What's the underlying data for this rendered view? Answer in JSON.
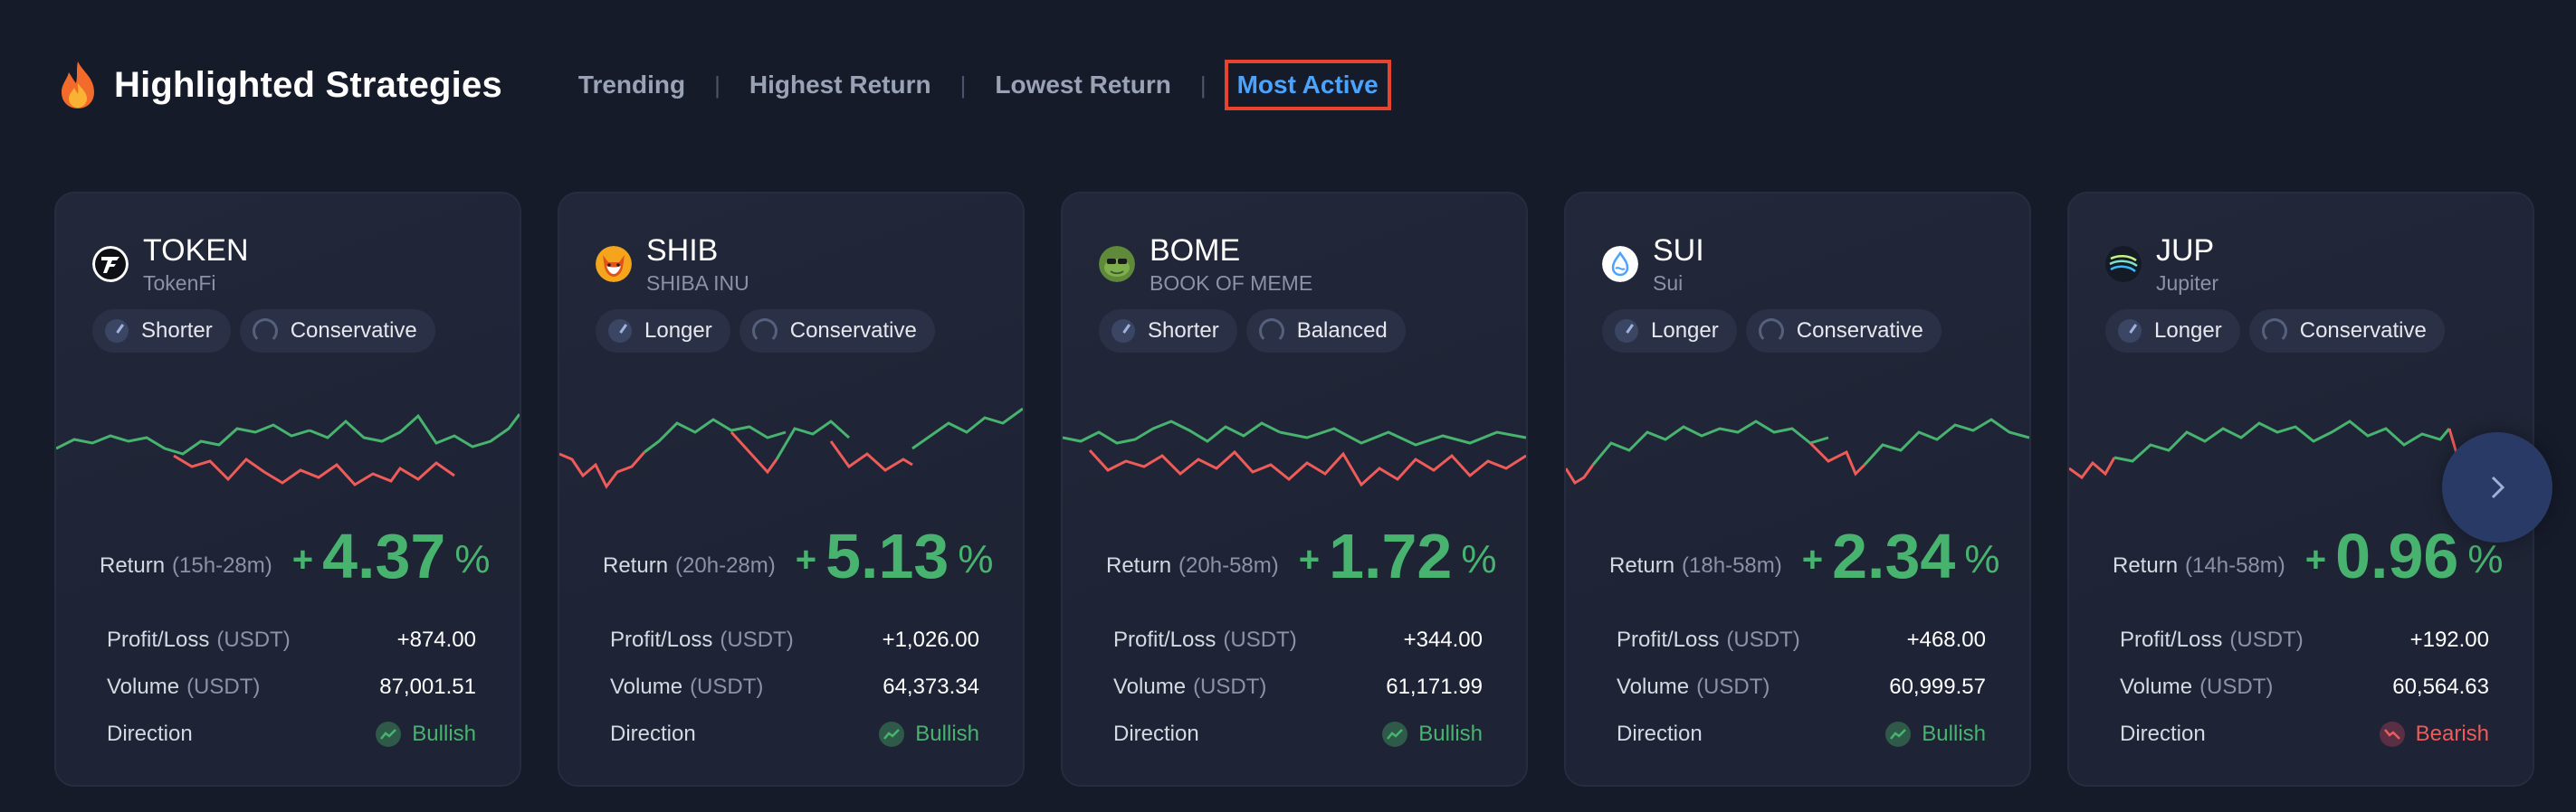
{
  "header": {
    "title": "Highlighted Strategies",
    "icon": "fire-icon",
    "tabs": [
      {
        "label": "Trending",
        "active": false
      },
      {
        "label": "Highest Return",
        "active": false
      },
      {
        "label": "Lowest Return",
        "active": false
      },
      {
        "label": "Most Active",
        "active": true
      }
    ]
  },
  "labels": {
    "return": "Return",
    "profit_loss": "Profit/Loss",
    "volume": "Volume",
    "unit": "(USDT)",
    "direction": "Direction",
    "percent": "%"
  },
  "colors": {
    "positive": "#47b36f",
    "negative": "#ee5b58",
    "active_tab": "#4aa3ff",
    "highlight_border": "#e8432d"
  },
  "cards": [
    {
      "symbol": "TOKEN",
      "name": "TokenFi",
      "duration": "Shorter",
      "risk": "Conservative",
      "return_time": "(15h-28m)",
      "return_sign": "+",
      "return_value": "4.37",
      "profit_loss": "+874.00",
      "volume": "87,001.51",
      "direction": "Bullish"
    },
    {
      "symbol": "SHIB",
      "name": "SHIBA INU",
      "duration": "Longer",
      "risk": "Conservative",
      "return_time": "(20h-28m)",
      "return_sign": "+",
      "return_value": "5.13",
      "profit_loss": "+1,026.00",
      "volume": "64,373.34",
      "direction": "Bullish"
    },
    {
      "symbol": "BOME",
      "name": "BOOK OF MEME",
      "duration": "Shorter",
      "risk": "Balanced",
      "return_time": "(20h-58m)",
      "return_sign": "+",
      "return_value": "1.72",
      "profit_loss": "+344.00",
      "volume": "61,171.99",
      "direction": "Bullish"
    },
    {
      "symbol": "SUI",
      "name": "Sui",
      "duration": "Longer",
      "risk": "Conservative",
      "return_time": "(18h-58m)",
      "return_sign": "+",
      "return_value": "2.34",
      "profit_loss": "+468.00",
      "volume": "60,999.57",
      "direction": "Bullish"
    },
    {
      "symbol": "JUP",
      "name": "Jupiter",
      "duration": "Longer",
      "risk": "Conservative",
      "return_time": "(14h-58m)",
      "return_sign": "+",
      "return_value": "0.96",
      "profit_loss": "+192.00",
      "volume": "60,564.63",
      "direction": "Bearish"
    }
  ],
  "next_button": {
    "icon": "chevron-right-icon"
  }
}
